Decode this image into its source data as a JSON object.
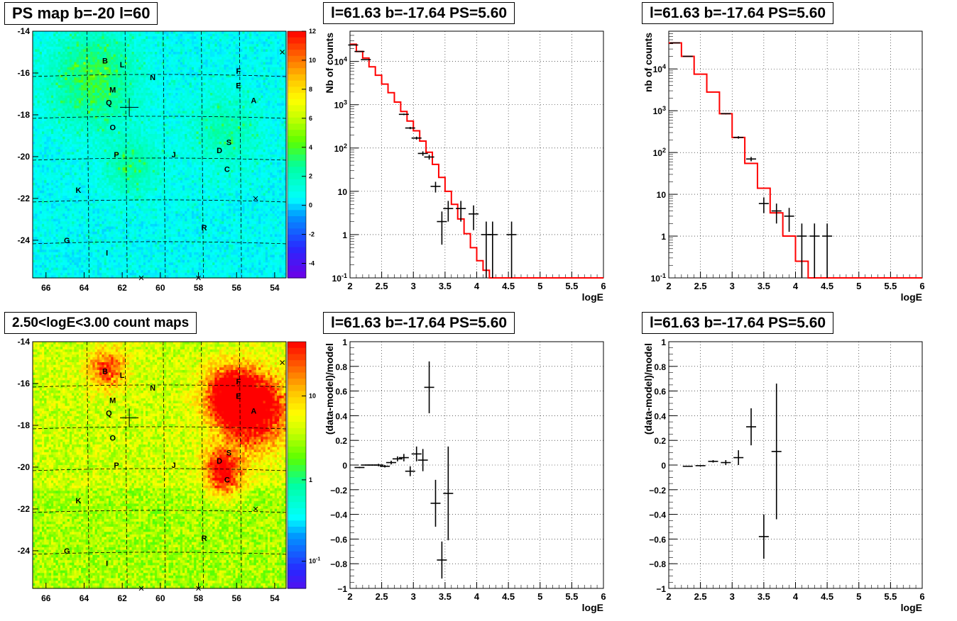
{
  "panels": {
    "ps_map": {
      "title": "PS map b=-20 l=60"
    },
    "count_map": {
      "title": "2.50<logE<3.00 count maps"
    },
    "spec_left": {
      "title": "l=61.63 b=-17.64 PS=5.60"
    },
    "spec_right": {
      "title": "l=61.63 b=-17.64 PS=5.60"
    },
    "res_left": {
      "title": "l=61.63 b=-17.64 PS=5.60"
    },
    "res_right": {
      "title": "l=61.63 b=-17.64 PS=5.60"
    }
  },
  "colors": {
    "model_line": "#ff0000",
    "data_points": "#000000",
    "grid": "#000000",
    "base_map": "#00ffff",
    "count_base": "#ffff00"
  },
  "chart_data": [
    {
      "id": "ps_map",
      "type": "heatmap",
      "title": "PS map b=-20 l=60",
      "xlim": [
        66.7,
        53.4
      ],
      "ylim": [
        -25.8,
        -14
      ],
      "x_ticks": [
        "66",
        "64",
        "62",
        "60",
        "58",
        "56",
        "54"
      ],
      "y_ticks": [
        "-14",
        "-16",
        "-18",
        "-20",
        "-22",
        "-24"
      ],
      "colorbar": {
        "scale": "linear",
        "min": -5,
        "max": 12,
        "ticks": [
          "12",
          "10",
          "8",
          "6",
          "4",
          "2",
          "0",
          "-2",
          "-4"
        ]
      },
      "grid": "dashed",
      "sources": [
        {
          "label": "B",
          "l": 62.9,
          "b": -15.4
        },
        {
          "label": "L",
          "l": 62.0,
          "b": -15.6
        },
        {
          "label": "N",
          "l": 60.4,
          "b": -16.2
        },
        {
          "label": "F",
          "l": 55.9,
          "b": -15.9
        },
        {
          "label": "M",
          "l": 62.5,
          "b": -16.8
        },
        {
          "label": "E",
          "l": 55.9,
          "b": -16.6
        },
        {
          "label": "A",
          "l": 55.1,
          "b": -17.3
        },
        {
          "label": "Q",
          "l": 62.7,
          "b": -17.4
        },
        {
          "label": "O",
          "l": 62.5,
          "b": -18.6
        },
        {
          "label": "S",
          "l": 56.4,
          "b": -19.3
        },
        {
          "label": "D",
          "l": 56.9,
          "b": -19.7
        },
        {
          "label": "P",
          "l": 62.3,
          "b": -19.9
        },
        {
          "label": "J",
          "l": 59.3,
          "b": -19.9
        },
        {
          "label": "C",
          "l": 56.5,
          "b": -20.6
        },
        {
          "label": "K",
          "l": 64.3,
          "b": -21.6
        },
        {
          "label": "R",
          "l": 57.7,
          "b": -23.4
        },
        {
          "label": "G",
          "l": 64.9,
          "b": -24.0
        },
        {
          "label": "I",
          "l": 62.8,
          "b": -24.6
        }
      ]
    },
    {
      "id": "count_map",
      "type": "heatmap",
      "title": "2.50<logE<3.00 count maps",
      "xlim": [
        66.7,
        53.4
      ],
      "ylim": [
        -25.8,
        -14
      ],
      "x_ticks": [
        "66",
        "64",
        "62",
        "60",
        "58",
        "56",
        "54"
      ],
      "y_ticks": [
        "-14",
        "-16",
        "-18",
        "-20",
        "-22",
        "-24"
      ],
      "colorbar": {
        "scale": "log",
        "ticks": [
          "10",
          "1",
          "10-1"
        ]
      },
      "grid": "dashed"
    },
    {
      "id": "spec_left",
      "type": "line",
      "title": "l=61.63 b=-17.64 PS=5.60",
      "xlabel": "logE",
      "ylabel": "Nb of counts",
      "yscale": "log",
      "xlim": [
        2,
        6
      ],
      "ylim": [
        0.1,
        50000
      ],
      "x_ticks": [
        "2",
        "2.5",
        "3",
        "3.5",
        "4",
        "4.5",
        "5",
        "5.5",
        "6"
      ],
      "y_ticks": [
        "10-1",
        "1",
        "10",
        "10²",
        "10³",
        "10⁴"
      ],
      "series": [
        {
          "kind": "model_step",
          "values": [
            [
              2.0,
              25000
            ],
            [
              2.1,
              17000
            ],
            [
              2.2,
              12000
            ],
            [
              2.3,
              7500
            ],
            [
              2.4,
              4800
            ],
            [
              2.5,
              3000
            ],
            [
              2.6,
              1900
            ],
            [
              2.7,
              1150
            ],
            [
              2.8,
              700
            ],
            [
              2.9,
              420
            ],
            [
              3.0,
              250
            ],
            [
              3.1,
              145
            ],
            [
              3.2,
              80
            ],
            [
              3.3,
              42
            ],
            [
              3.4,
              21
            ],
            [
              3.5,
              10
            ],
            [
              3.6,
              5
            ],
            [
              3.7,
              2.3
            ],
            [
              3.8,
              1.05
            ],
            [
              3.9,
              0.5
            ],
            [
              4.0,
              0.25
            ],
            [
              4.1,
              0.15
            ],
            [
              4.2,
              0.1
            ]
          ]
        },
        {
          "kind": "data_points",
          "values": [
            [
              2.05,
              24000
            ],
            [
              2.15,
              17000
            ],
            [
              2.25,
              11000
            ],
            [
              2.85,
              600
            ],
            [
              2.95,
              290
            ],
            [
              3.05,
              170
            ],
            [
              3.15,
              75
            ],
            [
              3.25,
              62
            ],
            [
              3.35,
              13
            ],
            [
              3.45,
              2
            ],
            [
              3.55,
              4
            ],
            [
              3.75,
              4
            ],
            [
              3.95,
              3
            ],
            [
              4.15,
              1
            ],
            [
              4.25,
              1
            ],
            [
              4.55,
              1
            ]
          ]
        }
      ]
    },
    {
      "id": "spec_right",
      "type": "line",
      "title": "l=61.63 b=-17.64 PS=5.60",
      "xlabel": "logE",
      "ylabel": "nb of counts",
      "yscale": "log",
      "xlim": [
        2,
        6
      ],
      "ylim": [
        0.1,
        80000
      ],
      "x_ticks": [
        "2",
        "2.5",
        "3",
        "3.5",
        "4",
        "4.5",
        "5",
        "5.5",
        "6"
      ],
      "y_ticks": [
        "10-1",
        "1",
        "10",
        "10²",
        "10³",
        "10⁴"
      ],
      "series": [
        {
          "kind": "model_step",
          "values": [
            [
              2.0,
              42000
            ],
            [
              2.2,
              20000
            ],
            [
              2.4,
              7500
            ],
            [
              2.6,
              2800
            ],
            [
              2.8,
              850
            ],
            [
              3.0,
              230
            ],
            [
              3.2,
              55
            ],
            [
              3.4,
              14
            ],
            [
              3.6,
              3.6
            ],
            [
              3.8,
              1.0
            ],
            [
              4.0,
              0.25
            ],
            [
              4.2,
              0.1
            ]
          ]
        },
        {
          "kind": "data_points",
          "values": [
            [
              2.1,
              42000
            ],
            [
              2.3,
              20000
            ],
            [
              2.9,
              850
            ],
            [
              3.1,
              230
            ],
            [
              3.3,
              70
            ],
            [
              3.5,
              6
            ],
            [
              3.7,
              4
            ],
            [
              3.9,
              3
            ],
            [
              4.1,
              1
            ],
            [
              4.3,
              1
            ],
            [
              4.5,
              1
            ]
          ]
        }
      ]
    },
    {
      "id": "res_left",
      "type": "scatter",
      "title": "l=61.63 b=-17.64 PS=5.60",
      "xlabel": "logE",
      "ylabel": "(data-model)/model",
      "xlim": [
        2,
        6
      ],
      "ylim": [
        -1,
        1
      ],
      "x_ticks": [
        "2",
        "2.5",
        "3",
        "3.5",
        "4",
        "4.5",
        "5",
        "5.5",
        "6"
      ],
      "y_ticks": [
        "-1",
        "-0.8",
        "-0.6",
        "-0.4",
        "-0.2",
        "0",
        "0.2",
        "0.4",
        "0.6",
        "0.8",
        "1"
      ],
      "series": [
        {
          "kind": "data_points",
          "values": [
            [
              2.15,
              -0.02,
              0.005
            ],
            [
              2.25,
              0.0,
              0.005
            ],
            [
              2.35,
              0.0,
              0.006
            ],
            [
              2.45,
              0.0,
              0.01
            ],
            [
              2.55,
              -0.01,
              0.01
            ],
            [
              2.65,
              0.02,
              0.015
            ],
            [
              2.75,
              0.05,
              0.02
            ],
            [
              2.85,
              0.06,
              0.03
            ],
            [
              2.95,
              -0.05,
              0.04
            ],
            [
              3.05,
              0.09,
              0.06
            ],
            [
              3.15,
              0.04,
              0.09
            ],
            [
              3.25,
              0.63,
              0.21
            ],
            [
              3.35,
              -0.31,
              0.19
            ],
            [
              3.45,
              -0.77,
              0.15
            ],
            [
              3.55,
              -0.23,
              0.38
            ]
          ]
        }
      ]
    },
    {
      "id": "res_right",
      "type": "scatter",
      "title": "l=61.63 b=-17.64 PS=5.60",
      "xlabel": "logE",
      "ylabel": "(data-model)/model",
      "xlim": [
        2,
        6
      ],
      "ylim": [
        -1,
        1
      ],
      "x_ticks": [
        "2",
        "2.5",
        "3",
        "3.5",
        "4",
        "4.5",
        "5",
        "5.5",
        "6"
      ],
      "y_ticks": [
        "-1",
        "-0.8",
        "-0.6",
        "-0.4",
        "-0.2",
        "0",
        "0.2",
        "0.4",
        "0.6",
        "0.8",
        "1"
      ],
      "series": [
        {
          "kind": "data_points",
          "values": [
            [
              2.3,
              -0.01,
              0.004
            ],
            [
              2.5,
              -0.005,
              0.005
            ],
            [
              2.7,
              0.03,
              0.01
            ],
            [
              2.9,
              0.02,
              0.02
            ],
            [
              3.1,
              0.06,
              0.06
            ],
            [
              3.3,
              0.31,
              0.15
            ],
            [
              3.5,
              -0.58,
              0.18
            ],
            [
              3.7,
              0.11,
              0.55
            ]
          ]
        }
      ]
    }
  ]
}
